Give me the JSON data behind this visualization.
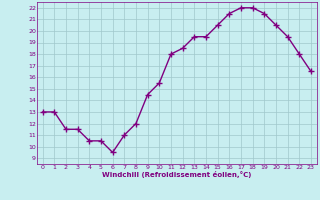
{
  "x": [
    0,
    1,
    2,
    3,
    4,
    5,
    6,
    7,
    8,
    9,
    10,
    11,
    12,
    13,
    14,
    15,
    16,
    17,
    18,
    19,
    20,
    21,
    22,
    23
  ],
  "y": [
    13,
    13,
    11.5,
    11.5,
    10.5,
    10.5,
    9.5,
    11,
    12,
    14.5,
    15.5,
    18,
    18.5,
    19.5,
    19.5,
    20.5,
    21.5,
    22,
    22,
    21.5,
    20.5,
    19.5,
    18,
    16.5
  ],
  "line_color": "#800080",
  "marker_color": "#800080",
  "bg_color": "#c8eef0",
  "grid_color": "#a0c8cc",
  "xlabel": "Windchill (Refroidissement éolien,°C)",
  "xlabel_color": "#800080",
  "ylim": [
    8.5,
    22.5
  ],
  "xlim": [
    -0.5,
    23.5
  ],
  "yticks": [
    9,
    10,
    11,
    12,
    13,
    14,
    15,
    16,
    17,
    18,
    19,
    20,
    21,
    22
  ],
  "xticks": [
    0,
    1,
    2,
    3,
    4,
    5,
    6,
    7,
    8,
    9,
    10,
    11,
    12,
    13,
    14,
    15,
    16,
    17,
    18,
    19,
    20,
    21,
    22,
    23
  ],
  "tick_label_color": "#800080",
  "marker_size": 2.5,
  "line_width": 1.0
}
